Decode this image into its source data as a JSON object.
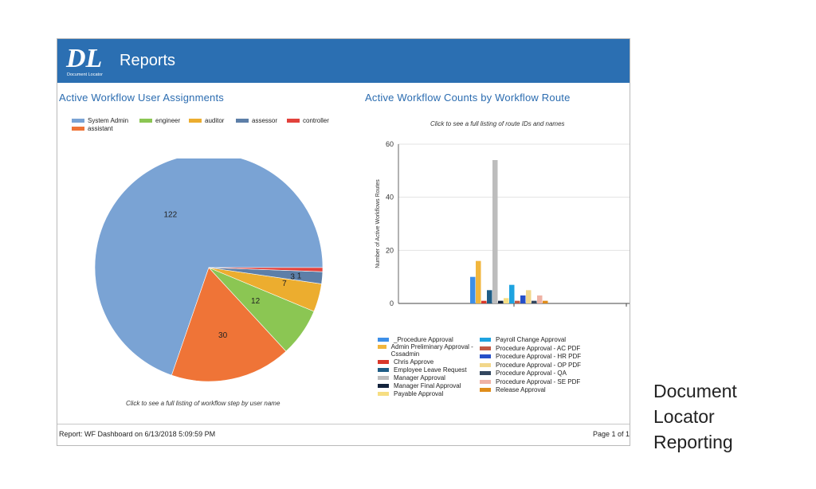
{
  "header": {
    "title": "Reports",
    "logo_text": "DL",
    "logo_subtext": "Document Locator"
  },
  "left_panel": {
    "title": "Active Workflow User Assignments",
    "caption": "Click to see a full listing of workflow step by user name"
  },
  "right_panel": {
    "title": "Active Workflow Counts by Workflow Route",
    "caption": "Click to see a full listing of route IDs and names"
  },
  "footer": {
    "report_info": "Report: WF Dashboard on 6/13/2018 5:09:59 PM",
    "page": "Page 1 of 1"
  },
  "side_caption": "Document\nLocator\nReporting",
  "chart_data": [
    {
      "type": "pie",
      "legend_position": "top-left",
      "slices": [
        {
          "label": "System Admin",
          "value": 122,
          "color": "#7aa3d4"
        },
        {
          "label": "assistant",
          "value": 30,
          "color": "#ef7437"
        },
        {
          "label": "engineer",
          "value": 12,
          "color": "#8bc653"
        },
        {
          "label": "auditor",
          "value": 7,
          "color": "#ecad2f"
        },
        {
          "label": "assessor",
          "value": 3,
          "color": "#5d7fa8"
        },
        {
          "label": "controller",
          "value": 1,
          "color": "#e2423c"
        }
      ]
    },
    {
      "type": "bar",
      "ylabel": "Number of Active Workflows Routes",
      "ylim": [
        0,
        60
      ],
      "yticks": [
        0,
        20,
        40,
        60
      ],
      "grid": true,
      "legend_position": "bottom",
      "series": [
        {
          "name": "_Procedure Approval",
          "value": 10,
          "color": "#3d8fe8"
        },
        {
          "name": "Admin Preliminary Approval - Cssadmin",
          "value": 16,
          "color": "#f1b63d"
        },
        {
          "name": "Chris Approve",
          "value": 1,
          "color": "#d9372a"
        },
        {
          "name": "Employee Leave Request",
          "value": 5,
          "color": "#1f5d86"
        },
        {
          "name": "Manager Approval",
          "value": 54,
          "color": "#bdbdbd"
        },
        {
          "name": "Manager Final Approval",
          "value": 1,
          "color": "#13233d"
        },
        {
          "name": "Payable Approval",
          "value": 2,
          "color": "#f6de82"
        },
        {
          "name": "Payroll Change Approval",
          "value": 7,
          "color": "#1ea3e0"
        },
        {
          "name": "Procedure Approval - AC PDF",
          "value": 1,
          "color": "#c25a44"
        },
        {
          "name": "Procedure Approval - HR PDF",
          "value": 3,
          "color": "#2650c9"
        },
        {
          "name": "Procedure Approval - OP PDF",
          "value": 5,
          "color": "#f2d78a"
        },
        {
          "name": "Procedure Approval - QA",
          "value": 1,
          "color": "#33475f"
        },
        {
          "name": "Procedure Approval - SE PDF",
          "value": 3,
          "color": "#efb2a5"
        },
        {
          "name": "Release Approval",
          "value": 1,
          "color": "#e08d1b"
        }
      ]
    }
  ]
}
